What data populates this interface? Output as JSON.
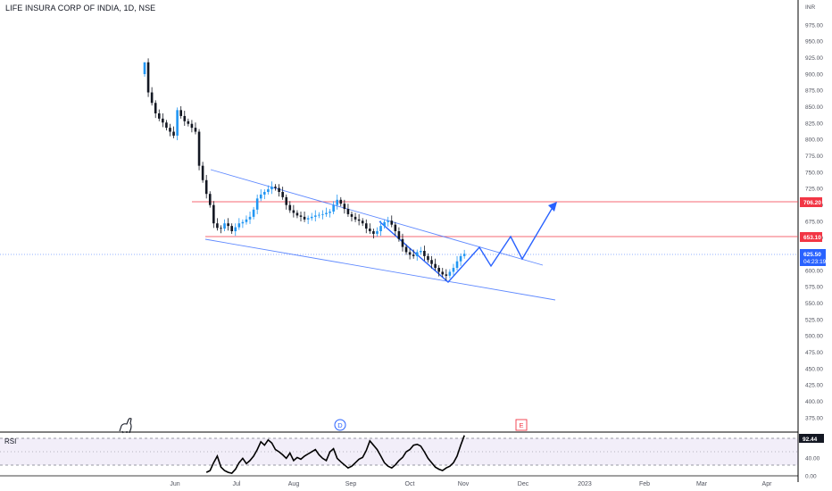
{
  "header": {
    "title": "LIFE INSURA CORP OF INDIA, 1D, NSE"
  },
  "price_axis": {
    "currency": "INR",
    "ticks": [
      "975.00",
      "950.00",
      "925.00",
      "900.00",
      "875.00",
      "850.00",
      "825.00",
      "800.00",
      "775.00",
      "750.00",
      "725.00",
      "700.00",
      "675.00",
      "650.00",
      "625.00",
      "600.00",
      "575.00",
      "550.00",
      "525.00",
      "500.00",
      "475.00",
      "450.00",
      "425.00",
      "400.00",
      "375.00"
    ]
  },
  "tags": {
    "resistance": {
      "label": "706.20",
      "value": 706.2,
      "color": "#f23645"
    },
    "support": {
      "label": "653.10",
      "value": 653.1,
      "color": "#f23645"
    },
    "last_price": {
      "label": "625.50",
      "value": 625.5,
      "color": "#2962ff"
    },
    "countdown": {
      "label": "04:23:19"
    }
  },
  "markers": {
    "dividend": "D",
    "earnings": "E"
  },
  "rsi": {
    "label": "RSI",
    "current": "92.44",
    "ticks": [
      "80.00",
      "40.00",
      "0.00"
    ],
    "upper": 70,
    "lower": 30
  },
  "time_axis": {
    "labels": [
      "Jun",
      "Jul",
      "Aug",
      "Sep",
      "Oct",
      "Nov",
      "Dec",
      "2023",
      "Feb",
      "Mar",
      "Apr"
    ]
  },
  "colors": {
    "up": "#2196f3",
    "down": "#131722",
    "drawing": "#2962ff",
    "level": "#f23645",
    "rsi_band": "#7e57c2"
  },
  "chart_data": {
    "type": "candlestick",
    "symbol": "LIFE INSURA CORP OF INDIA",
    "interval": "1D",
    "exchange": "NSE",
    "ylim": [
      360,
      990
    ],
    "close": [
      918,
      872,
      856,
      840,
      832,
      826,
      818,
      812,
      806,
      845,
      836,
      828,
      824,
      818,
      812,
      760,
      738,
      717,
      700,
      672,
      665,
      664,
      672,
      668,
      660,
      666,
      672,
      674,
      678,
      682,
      693,
      710,
      716,
      720,
      724,
      728,
      726,
      720,
      712,
      700,
      692,
      688,
      684,
      682,
      678,
      680,
      682,
      684,
      685,
      686,
      688,
      690,
      700,
      708,
      702,
      694,
      686,
      682,
      678,
      676,
      672,
      664,
      660,
      656,
      660,
      668,
      674,
      676,
      670,
      660,
      648,
      636,
      628,
      624,
      622,
      628,
      630,
      622,
      616,
      610,
      604,
      598,
      594,
      592,
      598,
      604,
      614,
      622,
      625.5
    ],
    "ohlc_note": "daily candles May 2022 - Nov 2022",
    "levels": [
      706.2,
      653.1
    ],
    "last_price": 625.5,
    "rsi_values": [
      0,
      0,
      0,
      0,
      0,
      0,
      0,
      0,
      0,
      0,
      0,
      0,
      0,
      0,
      0,
      0,
      0,
      8,
      12,
      30,
      45,
      20,
      12,
      8,
      6,
      15,
      30,
      40,
      28,
      35,
      45,
      60,
      78,
      70,
      82,
      75,
      60,
      55,
      48,
      40,
      52,
      35,
      42,
      38,
      45,
      50,
      55,
      60,
      48,
      40,
      35,
      55,
      62,
      40,
      32,
      25,
      18,
      22,
      30,
      38,
      42,
      58,
      80,
      70,
      60,
      45,
      30,
      22,
      18,
      25,
      35,
      42,
      55,
      60,
      70,
      72,
      68,
      55,
      40,
      30,
      20,
      15,
      12,
      18,
      22,
      30,
      45,
      70,
      92.44
    ],
    "rsi_ylim": [
      0,
      100
    ]
  }
}
